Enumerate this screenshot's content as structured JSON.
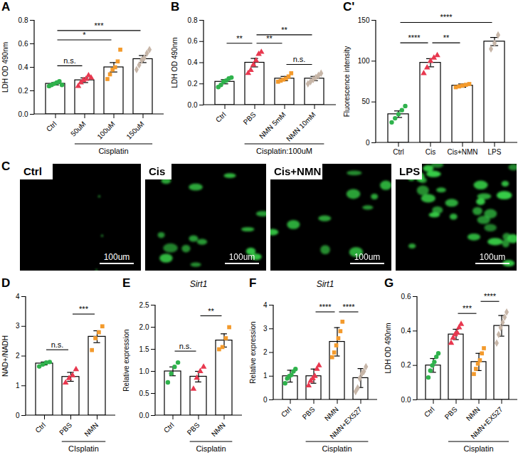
{
  "chart_data": [
    {
      "panel": "A",
      "type": "bar",
      "y_label": "LDH OD 490nm",
      "categories": [
        "Ctrl",
        "50uM",
        "100uM",
        "150uM"
      ],
      "values": [
        0.26,
        0.29,
        0.4,
        0.47
      ],
      "errors": [
        0.01,
        0.02,
        0.04,
        0.03
      ],
      "points": [
        [
          0.24,
          0.25,
          0.26,
          0.27,
          0.28,
          0.25
        ],
        [
          0.24,
          0.27,
          0.29,
          0.3,
          0.33,
          0.31
        ],
        [
          0.3,
          0.34,
          0.38,
          0.4,
          0.45,
          0.55
        ],
        [
          0.38,
          0.42,
          0.46,
          0.48,
          0.52,
          0.55
        ]
      ],
      "colors": [
        "#2fb24c",
        "#e8384f",
        "#f39a2c",
        "#c7b6a8"
      ],
      "marker": [
        "circle",
        "triangle",
        "square",
        "diamond"
      ],
      "ylim": [
        0,
        0.8
      ],
      "yticks": [
        {
          "value": 0,
          "label": "0.0"
        },
        0.2,
        0.4,
        0.6,
        0.8
      ],
      "significance": [
        {
          "from": 0,
          "to": 1,
          "label": "n.s."
        },
        {
          "from": 0,
          "to": 2,
          "label": "*"
        },
        {
          "from": 0,
          "to": 3,
          "label": "***"
        }
      ],
      "group": {
        "label": "Cisplatin",
        "from": 1,
        "to": 3
      }
    },
    {
      "panel": "B",
      "type": "bar",
      "y_label": "LDH OD 490nm",
      "categories": [
        "Ctrl",
        "PBS",
        "NMN 5mM",
        "NMN 10mM"
      ],
      "values": [
        0.22,
        0.4,
        0.25,
        0.25
      ],
      "errors": [
        0.02,
        0.04,
        0.02,
        0.02
      ],
      "points": [
        [
          0.17,
          0.19,
          0.22,
          0.23,
          0.25,
          0.26
        ],
        [
          0.3,
          0.33,
          0.38,
          0.42,
          0.48,
          0.5
        ],
        [
          0.22,
          0.23,
          0.24,
          0.25,
          0.27,
          0.3
        ],
        [
          0.2,
          0.22,
          0.24,
          0.26,
          0.28,
          0.3
        ]
      ],
      "colors": [
        "#2fb24c",
        "#e8384f",
        "#f39a2c",
        "#c7b6a8"
      ],
      "marker": [
        "circle",
        "triangle",
        "square",
        "diamond"
      ],
      "ylim": [
        0,
        0.8
      ],
      "yticks": [
        {
          "value": 0,
          "label": "0.0"
        },
        0.2,
        0.4,
        0.6,
        0.8
      ],
      "significance": [
        {
          "from": 0,
          "to": 1,
          "label": "**"
        },
        {
          "from": 1,
          "to": 2,
          "label": "**"
        },
        {
          "from": 2,
          "to": 3,
          "label": "n.s."
        },
        {
          "from": 1,
          "to": 3,
          "label": "**"
        }
      ],
      "group": {
        "label": "Cisplatin:100uM",
        "from": 1,
        "to": 3
      }
    },
    {
      "panel": "C'",
      "type": "bar",
      "y_label": "Fluorescence intensity",
      "categories": [
        "Ctrl",
        "Cis",
        "Cis+NMN",
        "LPS"
      ],
      "values": [
        35,
        98,
        70,
        124
      ],
      "errors": [
        4,
        5,
        2,
        5
      ],
      "points": [
        [
          25,
          30,
          35,
          40,
          45
        ],
        [
          85,
          92,
          100,
          104,
          107
        ],
        [
          68,
          69,
          70,
          71,
          72
        ],
        [
          115,
          122,
          132
        ]
      ],
      "colors": [
        "#2fb24c",
        "#e8384f",
        "#f39a2c",
        "#c7b6a8"
      ],
      "marker": [
        "circle",
        "triangle",
        "square",
        "diamond"
      ],
      "ylim": [
        0,
        150
      ],
      "yticks": [
        0,
        50,
        100,
        150
      ],
      "significance": [
        {
          "from": 0,
          "to": 1,
          "label": "****"
        },
        {
          "from": 1,
          "to": 2,
          "label": "**"
        },
        {
          "from": 0,
          "to": 3,
          "label": "****"
        }
      ]
    },
    {
      "panel": "D",
      "type": "bar",
      "y_label": "NAD+/NADH",
      "categories": [
        "Ctrl",
        "PBS",
        "NMN"
      ],
      "values": [
        1.75,
        1.3,
        2.65
      ],
      "errors": [
        0.05,
        0.15,
        0.2
      ],
      "points": [
        [
          1.65,
          1.72,
          1.78,
          1.8
        ],
        [
          1.1,
          1.25,
          1.35,
          1.55
        ],
        [
          2.2,
          2.6,
          2.8,
          3.0
        ]
      ],
      "colors": [
        "#2fb24c",
        "#e8384f",
        "#f39a2c"
      ],
      "marker": [
        "circle",
        "triangle",
        "square"
      ],
      "ylim": [
        0,
        4
      ],
      "yticks": [
        0,
        1,
        2,
        3,
        4
      ],
      "significance": [
        {
          "from": 0,
          "to": 1,
          "label": "n.s."
        },
        {
          "from": 1,
          "to": 2,
          "label": "***"
        }
      ],
      "group": {
        "label": "CIsplatin",
        "from": 1,
        "to": 2
      }
    },
    {
      "panel": "E",
      "type": "bar",
      "title": "Sirt1",
      "y_label": "Relative expression",
      "categories": [
        "Ctrl",
        "PBS",
        "NMN"
      ],
      "values": [
        1.0,
        0.88,
        1.7
      ],
      "errors": [
        0.1,
        0.12,
        0.15
      ],
      "points": [
        [
          0.75,
          0.95,
          1.1,
          1.2
        ],
        [
          0.6,
          0.85,
          1.0,
          1.1
        ],
        [
          1.5,
          1.55,
          1.75,
          2.0
        ]
      ],
      "colors": [
        "#2fb24c",
        "#e8384f",
        "#f39a2c"
      ],
      "marker": [
        "circle",
        "triangle",
        "square"
      ],
      "ylim": [
        0,
        2.5
      ],
      "yticks": [
        {
          "value": 0,
          "label": "0.0"
        },
        0.5,
        {
          "value": 1,
          "label": "1.0"
        },
        1.5,
        {
          "value": 2,
          "label": "2.0"
        },
        2.5
      ],
      "significance": [
        {
          "from": 0,
          "to": 1,
          "label": "n.s."
        },
        {
          "from": 1,
          "to": 2,
          "label": "**"
        }
      ],
      "group": {
        "label": "Cisplatin",
        "from": 1,
        "to": 2
      }
    },
    {
      "panel": "F",
      "type": "bar",
      "title": "Sirt1",
      "y_label": "Relative expression",
      "categories": [
        "Ctrl",
        "PBS",
        "NMN",
        "NMN+EX527"
      ],
      "values": [
        1.0,
        1.0,
        2.45,
        0.92
      ],
      "errors": [
        0.25,
        0.3,
        0.6,
        0.4
      ],
      "points": [
        [
          0.7,
          0.9,
          1.0,
          1.05,
          1.2,
          1.3
        ],
        [
          0.6,
          0.8,
          0.9,
          1.0,
          1.3,
          1.45
        ],
        [
          1.8,
          2.0,
          2.3,
          2.6,
          2.9,
          3.3
        ],
        [
          0.35,
          0.5,
          0.9,
          1.1,
          1.2,
          1.4
        ]
      ],
      "colors": [
        "#2fb24c",
        "#e8384f",
        "#f39a2c",
        "#c7b6a8"
      ],
      "marker": [
        "circle",
        "triangle",
        "square",
        "diamond"
      ],
      "ylim": [
        0,
        4
      ],
      "yticks": [
        0,
        1,
        2,
        3,
        4
      ],
      "significance": [
        {
          "from": 1,
          "to": 2,
          "label": "****"
        },
        {
          "from": 2,
          "to": 3,
          "label": "****"
        }
      ],
      "group": {
        "label": "Cisplatin",
        "from": 1,
        "to": 3
      }
    },
    {
      "panel": "G",
      "type": "bar",
      "y_label": "LDH OD 490nm",
      "categories": [
        "Ctrl",
        "PBS",
        "NMN",
        "NMN+EX527"
      ],
      "values": [
        0.2,
        0.38,
        0.22,
        0.43
      ],
      "errors": [
        0.04,
        0.03,
        0.05,
        0.06
      ],
      "points": [
        [
          0.13,
          0.17,
          0.2,
          0.22,
          0.25,
          0.27
        ],
        [
          0.33,
          0.36,
          0.38,
          0.39,
          0.42,
          0.44
        ],
        [
          0.15,
          0.18,
          0.21,
          0.23,
          0.27,
          0.3
        ],
        [
          0.33,
          0.38,
          0.42,
          0.45,
          0.48,
          0.51
        ]
      ],
      "colors": [
        "#2fb24c",
        "#e8384f",
        "#f39a2c",
        "#c7b6a8"
      ],
      "marker": [
        "circle",
        "triangle",
        "square",
        "diamond"
      ],
      "ylim": [
        0,
        0.6
      ],
      "yticks": [
        {
          "value": 0,
          "label": "0.0"
        },
        0.2,
        0.4,
        0.6
      ],
      "significance": [
        {
          "from": 1,
          "to": 2,
          "label": "***"
        },
        {
          "from": 2,
          "to": 3,
          "label": "****"
        }
      ],
      "group": {
        "label": "Cisplatin",
        "from": 1,
        "to": 3
      }
    }
  ],
  "images": {
    "panel": "C",
    "frames": [
      {
        "label": "Ctrl",
        "scale_bar": "100um"
      },
      {
        "label": "Cis",
        "scale_bar": "100um"
      },
      {
        "label": "Cis+NMN",
        "scale_bar": "100um"
      },
      {
        "label": "LPS",
        "scale_bar": "100um"
      }
    ]
  }
}
